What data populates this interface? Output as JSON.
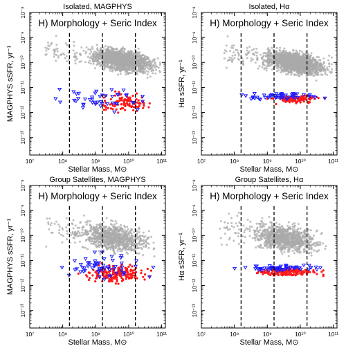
{
  "figure": {
    "point_colors": {
      "background": "#a9a9a9",
      "red": "#ff1a1a",
      "blue": "#1a1aff"
    }
  },
  "chart_data": [
    {
      "type": "scatter",
      "title": "Isolated, MAGPHYS",
      "annotation": "H) Morphology + Seric Index",
      "xlabel": "Stellar Mass, M⊙",
      "ylabel": "MAGPHYS sSFR, yr⁻¹",
      "xscale": "log",
      "yscale": "log",
      "xlim": [
        10000000.0,
        130000000000.0
      ],
      "ylim": [
        2e-14,
        1e-08
      ],
      "xticks": [
        "10⁷",
        "10⁸",
        "10⁹",
        "10¹⁰",
        "10¹¹"
      ],
      "yticks": [
        "10⁻¹³",
        "10⁻¹²",
        "10⁻¹¹",
        "10⁻¹⁰",
        "10⁻⁹",
        "10⁻⁸"
      ],
      "vlines": [
        160000000.0,
        1600000000.0,
        16000000000.0
      ],
      "series": [
        {
          "color": "gray",
          "marker": "circle",
          "cloud": {
            "x_range": [
              500000000.0,
              90000000000.0
            ],
            "y_center": 1.2e-10,
            "y_scatter_dex": 0.4,
            "trend_dex_per_dex": -0.2,
            "count": 1500,
            "tail": [
              30000000.0,
              500000000.0
            ],
            "tail_count": 60
          }
        },
        {
          "color": "red",
          "marker": "circle",
          "cloud": {
            "x_range": [
              1000000000.0,
              60000000000.0
            ],
            "y_center": 2.5e-12,
            "y_scatter_dex": 0.35,
            "trend_dex_per_dex": 0,
            "count": 110
          }
        },
        {
          "color": "blue",
          "marker": "triangle",
          "cloud": {
            "x_range": [
              30000000.0,
              80000000000.0
            ],
            "y_center": 3e-12,
            "y_scatter_dex": 0.5,
            "trend_dex_per_dex": 0,
            "count": 45
          }
        }
      ]
    },
    {
      "type": "scatter",
      "title": "Isolated, Hα",
      "annotation": "H) Morphology + Seric Index",
      "xlabel": "Stellar Mass, M⊙",
      "ylabel": "Hα sSFR, yr⁻¹",
      "xscale": "log",
      "yscale": "log",
      "xlim": [
        10000000.0,
        130000000000.0
      ],
      "ylim": [
        2e-14,
        1e-08
      ],
      "xticks": [
        "10⁷",
        "10⁸",
        "10⁹",
        "10¹⁰",
        "10¹¹"
      ],
      "yticks": [
        "10⁻¹³",
        "10⁻¹²",
        "10⁻¹¹",
        "10⁻¹⁰",
        "10⁻⁹",
        "10⁻⁸"
      ],
      "vlines": [
        160000000.0,
        1600000000.0,
        16000000000.0
      ],
      "series": [
        {
          "color": "gray",
          "marker": "circle",
          "cloud": {
            "x_range": [
              500000000.0,
              90000000000.0
            ],
            "y_center": 1e-10,
            "y_scatter_dex": 0.4,
            "trend_dex_per_dex": -0.2,
            "count": 1500,
            "tail": [
              50000000.0,
              500000000.0
            ],
            "tail_count": 60
          }
        },
        {
          "color": "red",
          "marker": "circle",
          "cloud": {
            "x_range": [
              1000000000.0,
              60000000000.0
            ],
            "y_center": 3.5e-12,
            "y_scatter_dex": 0.15,
            "trend_dex_per_dex": 0,
            "count": 110
          }
        },
        {
          "color": "blue",
          "marker": "triangle",
          "cloud": {
            "x_range": [
              50000000.0,
              80000000000.0
            ],
            "y_center": 4.5e-12,
            "y_scatter_dex": 0.12,
            "trend_dex_per_dex": 0,
            "count": 55
          }
        }
      ]
    },
    {
      "type": "scatter",
      "title": "Group Satellites, MAGPHYS",
      "annotation": "H) Morphology + Seric Index",
      "xlabel": "Stellar Mass, M⊙",
      "ylabel": "MAGPHYS sSFR, yr⁻¹",
      "xscale": "log",
      "yscale": "log",
      "xlim": [
        10000000.0,
        130000000000.0
      ],
      "ylim": [
        2e-14,
        1e-08
      ],
      "xticks": [
        "10⁷",
        "10⁸",
        "10⁹",
        "10¹⁰",
        "10¹¹"
      ],
      "yticks": [
        "10⁻¹³",
        "10⁻¹²",
        "10⁻¹¹",
        "10⁻¹⁰",
        "10⁻⁹",
        "10⁻⁸"
      ],
      "vlines": [
        160000000.0,
        1600000000.0,
        16000000000.0
      ],
      "series": [
        {
          "color": "gray",
          "marker": "circle",
          "cloud": {
            "x_range": [
              200000000.0,
              60000000000.0
            ],
            "y_center": 8e-11,
            "y_scatter_dex": 0.5,
            "trend_dex_per_dex": -0.2,
            "count": 900,
            "tail": [
              30000000.0,
              300000000.0
            ],
            "tail_count": 40
          }
        },
        {
          "color": "red",
          "marker": "circle",
          "cloud": {
            "x_range": [
              300000000.0,
              50000000000.0
            ],
            "y_center": 3e-12,
            "y_scatter_dex": 0.35,
            "trend_dex_per_dex": 0,
            "count": 200
          }
        },
        {
          "color": "blue",
          "marker": "triangle",
          "cloud": {
            "x_range": [
              80000000.0,
              60000000000.0
            ],
            "y_center": 6e-12,
            "y_scatter_dex": 0.45,
            "trend_dex_per_dex": 0,
            "count": 60
          }
        }
      ]
    },
    {
      "type": "scatter",
      "title": "Group Satellites, Hα",
      "annotation": "H) Morphology + Seric Index",
      "xlabel": "Stellar Mass, M⊙",
      "ylabel": "Hα sSFR, yr⁻¹",
      "xscale": "log",
      "yscale": "log",
      "xlim": [
        10000000.0,
        130000000000.0
      ],
      "ylim": [
        2e-14,
        1e-08
      ],
      "xticks": [
        "10⁷",
        "10⁸",
        "10⁹",
        "10¹⁰",
        "10¹¹"
      ],
      "yticks": [
        "10⁻¹³",
        "10⁻¹²",
        "10⁻¹¹",
        "10⁻¹⁰",
        "10⁻⁹",
        "10⁻⁸"
      ],
      "vlines": [
        160000000.0,
        1600000000.0,
        16000000000.0
      ],
      "series": [
        {
          "color": "gray",
          "marker": "circle",
          "cloud": {
            "x_range": [
              200000000.0,
              60000000000.0
            ],
            "y_center": 8e-11,
            "y_scatter_dex": 0.5,
            "trend_dex_per_dex": -0.2,
            "count": 900,
            "tail": [
              30000000.0,
              300000000.0
            ],
            "tail_count": 40
          }
        },
        {
          "color": "red",
          "marker": "circle",
          "cloud": {
            "x_range": [
              300000000.0,
              50000000000.0
            ],
            "y_center": 3.5e-12,
            "y_scatter_dex": 0.15,
            "trend_dex_per_dex": 0,
            "count": 200
          }
        },
        {
          "color": "blue",
          "marker": "triangle",
          "cloud": {
            "x_range": [
              100000000.0,
              60000000000.0
            ],
            "y_center": 5e-12,
            "y_scatter_dex": 0.12,
            "trend_dex_per_dex": 0,
            "count": 60
          }
        }
      ]
    }
  ]
}
